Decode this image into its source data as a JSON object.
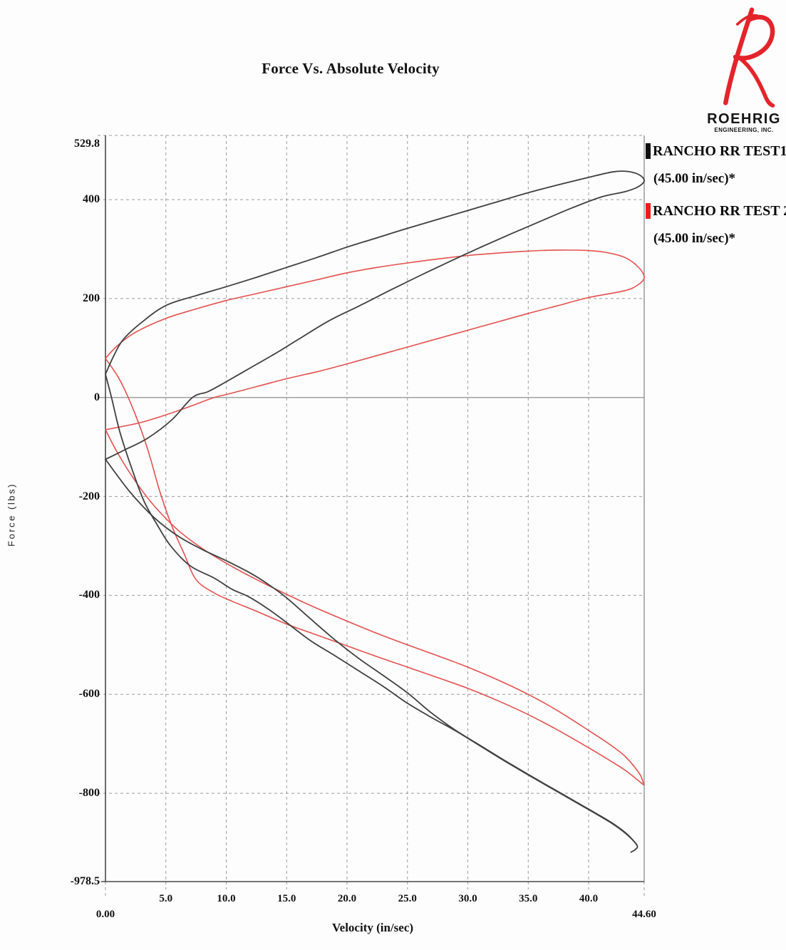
{
  "logo": {
    "letter": "R",
    "name": "ROEHRIG",
    "subtitle": "ENGINEERING, INC.",
    "accent_color": "#e3242b",
    "text_color": "#151515"
  },
  "chart_data": {
    "type": "line",
    "title": "Force Vs. Absolute Velocity",
    "xlabel": "Velocity (in/sec)",
    "ylabel": "Force (lbs)",
    "xlim": [
      0,
      44.6
    ],
    "ylim": [
      -978.5,
      529.8
    ],
    "grid": "dashed",
    "legend_position": "top-right",
    "colors": {
      "grid": "#9c9c9c",
      "zero_line": "#8f8f8f",
      "axis": "#474747",
      "right_border": "#8a8a8a"
    },
    "x_ticks": [
      {
        "v": 0,
        "label": "0.00",
        "row": 2
      },
      {
        "v": 5,
        "label": "5.0",
        "row": 1
      },
      {
        "v": 10,
        "label": "10.0",
        "row": 1
      },
      {
        "v": 15,
        "label": "15.0",
        "row": 1
      },
      {
        "v": 20,
        "label": "20.0",
        "row": 1
      },
      {
        "v": 25,
        "label": "25.0",
        "row": 1
      },
      {
        "v": 30,
        "label": "30.0",
        "row": 1
      },
      {
        "v": 35,
        "label": "35.0",
        "row": 1
      },
      {
        "v": 40,
        "label": "40.0",
        "row": 1
      },
      {
        "v": 44.6,
        "label": "44.60",
        "row": 2
      }
    ],
    "y_ticks": [
      {
        "f": 529.8,
        "label": "529.8"
      },
      {
        "f": 400,
        "label": "400"
      },
      {
        "f": 200,
        "label": "200"
      },
      {
        "f": 0,
        "label": "0",
        "zero": true
      },
      {
        "f": -200,
        "label": "-200"
      },
      {
        "f": -400,
        "label": "-400"
      },
      {
        "f": -600,
        "label": "-600"
      },
      {
        "f": -800,
        "label": "-800"
      },
      {
        "f": -978.5,
        "label": "-978.5",
        "axis": true
      }
    ],
    "series": [
      {
        "name": "RANCHO RR TEST1",
        "sub": "(45.00 in/sec)*",
        "color": "#3f3f3f",
        "marker_color": "#0d0d0d",
        "peak_compression_lbs": 457,
        "peak_rebound_lbs": -919,
        "loops": {
          "compression": [
            [
              0,
              47
            ],
            [
              0.7,
              85
            ],
            [
              1.5,
              118
            ],
            [
              3,
              152
            ],
            [
              5,
              186
            ],
            [
              7.5,
              206
            ],
            [
              10,
              224
            ],
            [
              12.5,
              243
            ],
            [
              15,
              263
            ],
            [
              17.5,
              283
            ],
            [
              20,
              304
            ],
            [
              22.5,
              323
            ],
            [
              25,
              342
            ],
            [
              27.5,
              360
            ],
            [
              30,
              378
            ],
            [
              32.5,
              396
            ],
            [
              35,
              414
            ],
            [
              37.5,
              430
            ],
            [
              40,
              445
            ],
            [
              42,
              456
            ],
            [
              43.2,
              457
            ],
            [
              44.2,
              450
            ],
            [
              44.6,
              438
            ],
            [
              44.1,
              426
            ],
            [
              43,
              416
            ],
            [
              41,
              405
            ],
            [
              38.5,
              382
            ],
            [
              36,
              356
            ],
            [
              33.5,
              330
            ],
            [
              31,
              303
            ],
            [
              28.5,
              275
            ],
            [
              26,
              246
            ],
            [
              23.5,
              216
            ],
            [
              21,
              185
            ],
            [
              18.5,
              155
            ],
            [
              16,
              118
            ],
            [
              14,
              88
            ],
            [
              12,
              60
            ],
            [
              10,
              32
            ],
            [
              8.5,
              12
            ],
            [
              7.2,
              0
            ],
            [
              5.5,
              -45
            ],
            [
              3.5,
              -82
            ],
            [
              1.5,
              -107
            ],
            [
              0,
              -125
            ]
          ],
          "rebound_out": [
            [
              0,
              -125
            ],
            [
              2,
              -190
            ],
            [
              4,
              -242
            ],
            [
              6,
              -280
            ],
            [
              8,
              -307
            ],
            [
              10,
              -330
            ],
            [
              12,
              -355
            ],
            [
              13.5,
              -378
            ],
            [
              15,
              -405
            ],
            [
              17,
              -448
            ],
            [
              19,
              -490
            ],
            [
              21,
              -528
            ],
            [
              23,
              -562
            ],
            [
              25,
              -597
            ],
            [
              27,
              -638
            ],
            [
              29,
              -673
            ],
            [
              31,
              -703
            ],
            [
              33,
              -733
            ],
            [
              35,
              -762
            ],
            [
              37,
              -790
            ],
            [
              39,
              -818
            ],
            [
              40.5,
              -839
            ],
            [
              42,
              -861
            ],
            [
              43.2,
              -883
            ],
            [
              44,
              -904
            ]
          ],
          "rebound_back": [
            [
              0,
              47
            ],
            [
              0.5,
              0
            ],
            [
              1.2,
              -70
            ],
            [
              2.2,
              -145
            ],
            [
              3.2,
              -210
            ],
            [
              4.3,
              -258
            ],
            [
              5.4,
              -300
            ],
            [
              7,
              -340
            ],
            [
              9,
              -365
            ],
            [
              10.5,
              -388
            ],
            [
              11.8,
              -402
            ],
            [
              13.5,
              -428
            ],
            [
              15,
              -455
            ],
            [
              17,
              -492
            ],
            [
              19,
              -522
            ],
            [
              21,
              -553
            ],
            [
              23,
              -584
            ],
            [
              25,
              -618
            ],
            [
              27,
              -647
            ],
            [
              29,
              -674
            ],
            [
              31,
              -704
            ],
            [
              33,
              -734
            ],
            [
              35,
              -763
            ],
            [
              37,
              -791
            ],
            [
              39,
              -819
            ],
            [
              40.5,
              -840
            ],
            [
              42,
              -862
            ],
            [
              43.2,
              -884
            ],
            [
              44,
              -905
            ],
            [
              43.9,
              -913
            ],
            [
              43.5,
              -919
            ]
          ]
        }
      },
      {
        "name": "RANCHO RR TEST 2",
        "sub": "(45.00 in/sec)*",
        "color": "#e4504f",
        "marker_color": "#ee1b1b",
        "peak_compression_lbs": 298,
        "peak_rebound_lbs": -785,
        "loops": {
          "compression": [
            [
              0,
              79
            ],
            [
              1,
              105
            ],
            [
              2.5,
              132
            ],
            [
              5,
              160
            ],
            [
              7.5,
              179
            ],
            [
              10,
              196
            ],
            [
              12.5,
              210
            ],
            [
              15,
              224
            ],
            [
              17.5,
              238
            ],
            [
              20,
              252
            ],
            [
              22.5,
              263
            ],
            [
              25,
              272
            ],
            [
              27.5,
              280
            ],
            [
              30,
              287
            ],
            [
              32.5,
              292
            ],
            [
              35,
              296
            ],
            [
              37.5,
              298
            ],
            [
              40,
              297
            ],
            [
              41.5,
              293
            ],
            [
              43,
              283
            ],
            [
              44.1,
              264
            ],
            [
              44.6,
              243
            ],
            [
              44.1,
              228
            ],
            [
              43,
              216
            ],
            [
              40,
              202
            ],
            [
              37.5,
              186
            ],
            [
              35,
              170
            ],
            [
              32.5,
              153
            ],
            [
              30,
              136
            ],
            [
              27.5,
              119
            ],
            [
              25,
              102
            ],
            [
              22.5,
              85
            ],
            [
              20,
              68
            ],
            [
              17.5,
              52
            ],
            [
              15,
              38
            ],
            [
              12.5,
              22
            ],
            [
              10,
              6
            ],
            [
              9,
              0
            ],
            [
              7,
              -18
            ],
            [
              5,
              -35
            ],
            [
              3,
              -50
            ],
            [
              1.5,
              -58
            ],
            [
              0,
              -65
            ]
          ],
          "rebound_out": [
            [
              0,
              -65
            ],
            [
              1,
              -112
            ],
            [
              2.5,
              -170
            ],
            [
              4,
              -218
            ],
            [
              6,
              -268
            ],
            [
              8,
              -305
            ],
            [
              10,
              -335
            ],
            [
              12.5,
              -368
            ],
            [
              15,
              -398
            ],
            [
              17.5,
              -426
            ],
            [
              20,
              -452
            ],
            [
              22.5,
              -477
            ],
            [
              25,
              -500
            ],
            [
              27.5,
              -522
            ],
            [
              30,
              -545
            ],
            [
              32.5,
              -571
            ],
            [
              35,
              -600
            ],
            [
              37.5,
              -634
            ],
            [
              40,
              -673
            ],
            [
              41.5,
              -697
            ],
            [
              43,
              -725
            ],
            [
              44.2,
              -760
            ],
            [
              44.55,
              -781
            ]
          ],
          "rebound_back": [
            [
              0,
              79
            ],
            [
              1.2,
              35
            ],
            [
              2.4,
              -30
            ],
            [
              3.5,
              -105
            ],
            [
              4.5,
              -190
            ],
            [
              5.5,
              -260
            ],
            [
              6.5,
              -315
            ],
            [
              7.5,
              -368
            ],
            [
              9,
              -395
            ],
            [
              10.5,
              -412
            ],
            [
              12.5,
              -432
            ],
            [
              15,
              -458
            ],
            [
              17.5,
              -480
            ],
            [
              20,
              -502
            ],
            [
              22.5,
              -524
            ],
            [
              25,
              -545
            ],
            [
              27.5,
              -566
            ],
            [
              30,
              -588
            ],
            [
              32.5,
              -613
            ],
            [
              35,
              -641
            ],
            [
              37.5,
              -673
            ],
            [
              40,
              -708
            ],
            [
              41.5,
              -730
            ],
            [
              43,
              -753
            ],
            [
              44.2,
              -776
            ],
            [
              44.55,
              -783
            ]
          ]
        }
      }
    ]
  }
}
